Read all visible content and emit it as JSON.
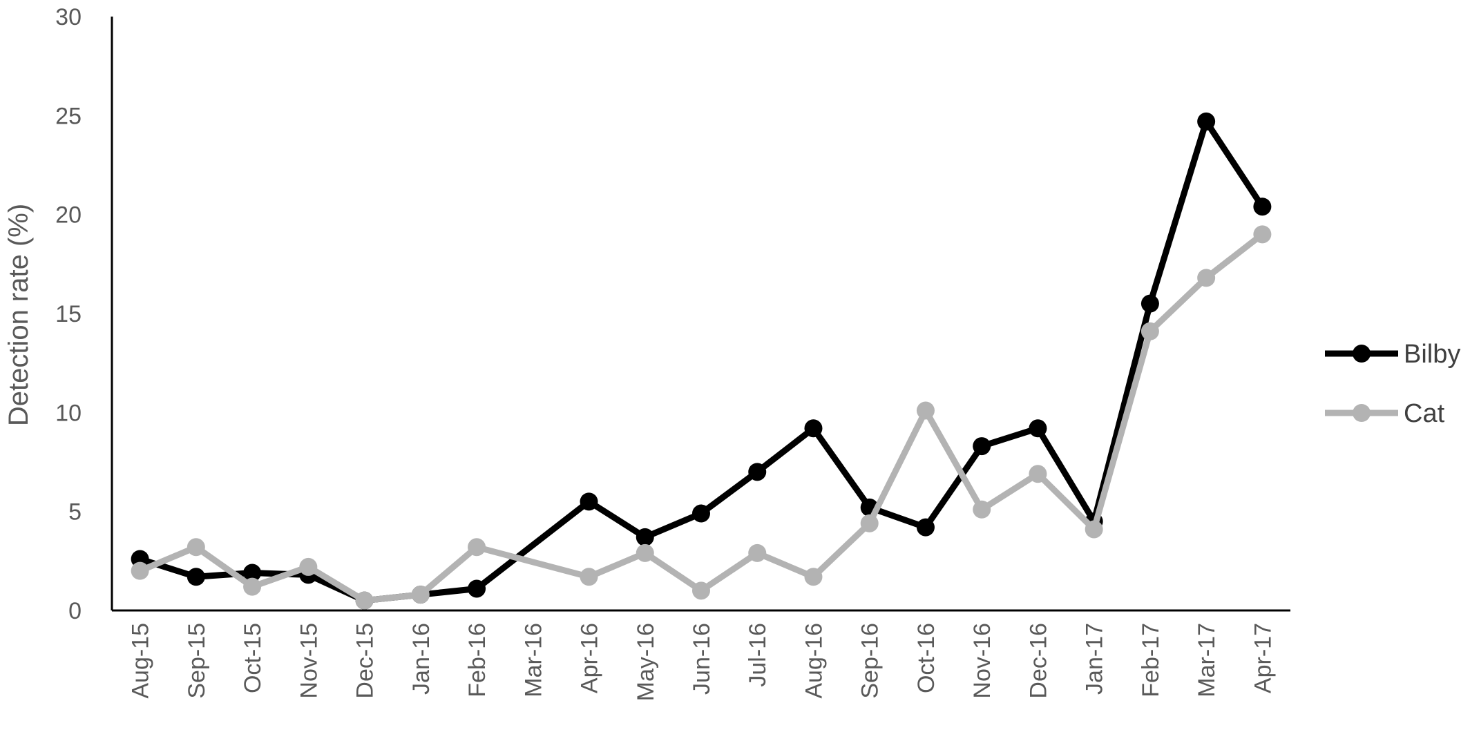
{
  "chart_data": {
    "type": "line",
    "title": "",
    "xlabel": "",
    "ylabel": "Detection rate (%)",
    "ylim": [
      0,
      30
    ],
    "yticks": [
      0,
      5,
      10,
      15,
      20,
      25,
      30
    ],
    "grid": false,
    "legend_position": "right",
    "categories": [
      "Aug-15",
      "Sep-15",
      "Oct-15",
      "Nov-15",
      "Dec-15",
      "Jan-16",
      "Feb-16",
      "Mar-16",
      "Apr-16",
      "May-16",
      "Jun-16",
      "Jul-16",
      "Aug-16",
      "Sep-16",
      "Oct-16",
      "Nov-16",
      "Dec-16",
      "Jan-17",
      "Feb-17",
      "Mar-17",
      "Apr-17"
    ],
    "series": [
      {
        "name": "Bilby",
        "color": "#000000",
        "values": [
          2.6,
          1.7,
          1.9,
          1.8,
          0.5,
          0.8,
          1.1,
          null,
          5.5,
          3.7,
          4.9,
          7.0,
          9.2,
          5.2,
          4.2,
          8.3,
          9.2,
          4.5,
          15.5,
          24.7,
          20.4
        ]
      },
      {
        "name": "Cat",
        "color": "#b3b3b3",
        "values": [
          2.0,
          3.2,
          1.2,
          2.2,
          0.5,
          0.8,
          3.2,
          null,
          1.7,
          2.9,
          1.0,
          2.9,
          1.7,
          4.4,
          10.1,
          5.1,
          6.9,
          4.1,
          14.1,
          16.8,
          19.0
        ]
      }
    ]
  }
}
